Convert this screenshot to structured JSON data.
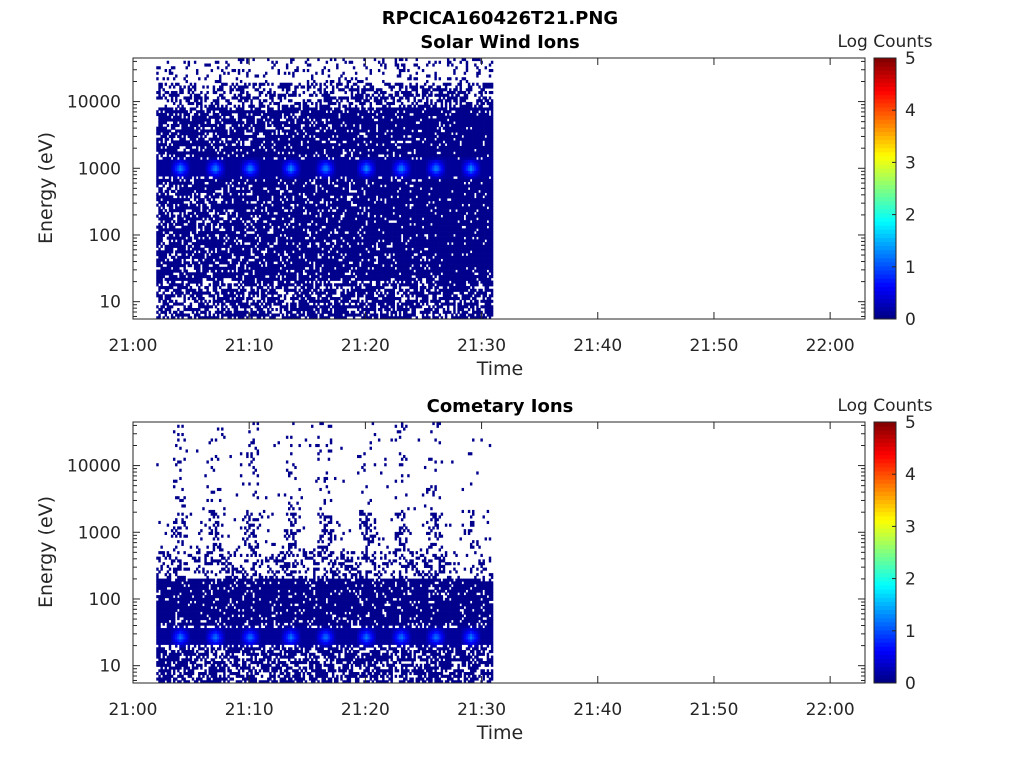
{
  "figure": {
    "title": "RPCICA160426T21.PNG"
  },
  "colorbar": {
    "label": "Log Counts",
    "ticks": [
      "0",
      "1",
      "2",
      "3",
      "4",
      "5"
    ],
    "range": [
      0,
      5
    ],
    "colormap": "jet"
  },
  "chart_data": [
    {
      "type": "heatmap",
      "title": "Solar Wind Ions",
      "xlabel": "Time",
      "ylabel": "Energy (eV)",
      "xticks": [
        "21:00",
        "21:10",
        "21:20",
        "21:30",
        "21:40",
        "21:50",
        "22:00"
      ],
      "xlim": [
        "21:00",
        "22:03"
      ],
      "yticks": [
        "10",
        "100",
        "1000",
        "10000"
      ],
      "ylim": [
        5.5,
        45000
      ],
      "yscale": "log",
      "data_time_range": [
        "21:02",
        "21:31"
      ],
      "peak_energy_eV": 1000,
      "peak_log_counts": 1.3,
      "cycle_times": [
        "21:04",
        "21:07",
        "21:10",
        "21:13.5",
        "21:16.5",
        "21:20",
        "21:23",
        "21:26",
        "21:29"
      ],
      "colorbar_label": "Log Counts"
    },
    {
      "type": "heatmap",
      "title": "Cometary Ions",
      "xlabel": "Time",
      "ylabel": "Energy (eV)",
      "xticks": [
        "21:00",
        "21:10",
        "21:20",
        "21:30",
        "21:40",
        "21:50",
        "22:00"
      ],
      "xlim": [
        "21:00",
        "22:03"
      ],
      "yticks": [
        "10",
        "100",
        "1000",
        "10000"
      ],
      "ylim": [
        5.5,
        45000
      ],
      "yscale": "log",
      "data_time_range": [
        "21:02",
        "21:31"
      ],
      "peak_energy_eV": 27,
      "peak_log_counts": 1.2,
      "cycle_times": [
        "21:04",
        "21:07",
        "21:10",
        "21:13.5",
        "21:16.5",
        "21:20",
        "21:23",
        "21:26",
        "21:29"
      ],
      "colorbar_label": "Log Counts"
    }
  ]
}
